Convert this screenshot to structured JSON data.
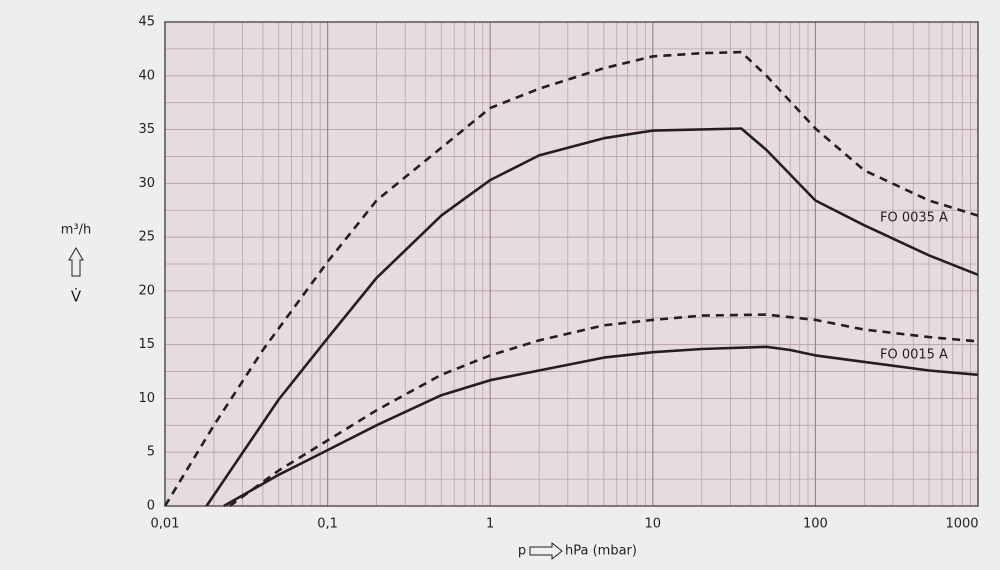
{
  "chart_data": {
    "type": "line",
    "y_label": "m³/h",
    "y_symbol": "V̇",
    "x_label_symbol": "p",
    "x_label": "hPa (mbar)",
    "annotations": [
      "FO 0035 A",
      "FO 0015 A"
    ],
    "log_x": true,
    "grid": true,
    "xlim": [
      0.01,
      1000
    ],
    "xticks": [
      {
        "value": 0.01,
        "label": "0,01"
      },
      {
        "value": 0.1,
        "label": "0,1"
      },
      1,
      10,
      100,
      1000
    ],
    "ylim": [
      0,
      45
    ],
    "yticks": [
      0,
      5,
      10,
      15,
      20,
      25,
      30,
      35,
      40,
      45
    ],
    "series": [
      {
        "color": "#231f20",
        "dashed": true,
        "x": [
          0.01,
          0.02,
          0.04,
          0.1,
          0.2,
          0.5,
          1,
          2,
          5,
          10,
          20,
          35,
          50,
          100,
          200,
          500,
          1000
        ],
        "values": [
          0,
          7.5,
          14.5,
          22.7,
          28.4,
          33.3,
          37,
          38.8,
          40.7,
          41.8,
          42.1,
          42.2,
          40,
          35.1,
          31.2,
          28.4,
          27
        ]
      },
      {
        "color": "#231f20",
        "dashed": false,
        "x": [
          0.018,
          0.05,
          0.1,
          0.2,
          0.5,
          1,
          2,
          5,
          10,
          35,
          50,
          100,
          200,
          500,
          1000
        ],
        "values": [
          0,
          9.9,
          15.6,
          21.2,
          27,
          30.3,
          32.6,
          34.2,
          34.9,
          35.1,
          33.1,
          28.4,
          26.1,
          23.3,
          21.5
        ]
      },
      {
        "color": "#231f20",
        "dashed": true,
        "x": [
          0.025,
          0.05,
          0.1,
          0.2,
          0.5,
          1,
          2,
          5,
          10,
          20,
          50,
          100,
          200,
          500,
          1000
        ],
        "values": [
          0,
          3.3,
          6.1,
          8.9,
          12.2,
          14,
          15.4,
          16.8,
          17.3,
          17.7,
          17.8,
          17.3,
          16.4,
          15.7,
          15.3
        ]
      },
      {
        "color": "#231f20",
        "dashed": false,
        "x": [
          0.023,
          0.05,
          0.1,
          0.2,
          0.5,
          1,
          2,
          5,
          10,
          20,
          50,
          70,
          100,
          200,
          500,
          1000
        ],
        "values": [
          0,
          2.9,
          5.2,
          7.5,
          10.3,
          11.7,
          12.6,
          13.8,
          14.3,
          14.6,
          14.8,
          14.5,
          14,
          13.4,
          12.6,
          12.2
        ]
      }
    ]
  }
}
